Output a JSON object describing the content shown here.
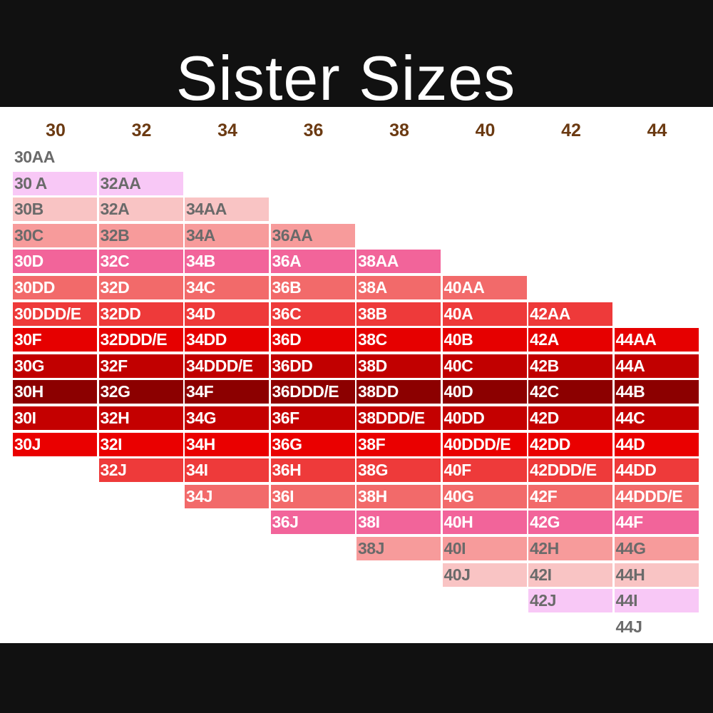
{
  "title": "Sister Sizes",
  "bands": [
    "30",
    "32",
    "34",
    "36",
    "38",
    "40",
    "42",
    "44"
  ],
  "cup_colors": {
    "AA": {
      "bg": "none",
      "fg": "light"
    },
    "A": {
      "bg": "#f8c8f6",
      "fg": "light"
    },
    "B": {
      "bg": "#f9c4c4",
      "fg": "light"
    },
    "C": {
      "bg": "#f79b9b",
      "fg": "light"
    },
    "D": {
      "bg": "#f2649a",
      "fg": "dark"
    },
    "DD": {
      "bg": "#f26a6a",
      "fg": "dark"
    },
    "DDD/E": {
      "bg": "#ee3a3a",
      "fg": "dark"
    },
    "F": {
      "bg": "#e60000",
      "fg": "dark"
    },
    "G": {
      "bg": "#c10000",
      "fg": "dark"
    },
    "H": {
      "bg": "#8c0000",
      "fg": "dark"
    },
    "I": {
      "bg": "#c40000",
      "fg": "dark"
    },
    "J": {
      "bg": "#ea0000",
      "fg": "dark"
    }
  },
  "columns": [
    {
      "band": "30",
      "start_row": 0,
      "cells": [
        {
          "label": "30AA",
          "tone": "AA"
        },
        {
          "label": "30 A",
          "tone": "A"
        },
        {
          "label": "30B",
          "tone": "B"
        },
        {
          "label": "30C",
          "tone": "C"
        },
        {
          "label": "30D",
          "tone": "D"
        },
        {
          "label": "30DD",
          "tone": "DD"
        },
        {
          "label": "30DDD/E",
          "tone": "DDD/E"
        },
        {
          "label": "30F",
          "tone": "F"
        },
        {
          "label": "30G",
          "tone": "G"
        },
        {
          "label": "30H",
          "tone": "H"
        },
        {
          "label": "30I",
          "tone": "I"
        },
        {
          "label": "30J",
          "tone": "J"
        }
      ]
    },
    {
      "band": "32",
      "start_row": 1,
      "cells": [
        {
          "label": "32AA",
          "tone": "AA"
        },
        {
          "label": "32A",
          "tone": "A"
        },
        {
          "label": "32B",
          "tone": "B"
        },
        {
          "label": "32C",
          "tone": "C"
        },
        {
          "label": "32D",
          "tone": "D"
        },
        {
          "label": "32DD",
          "tone": "DD"
        },
        {
          "label": "32DDD/E",
          "tone": "DDD/E"
        },
        {
          "label": "32F",
          "tone": "F"
        },
        {
          "label": "32G",
          "tone": "G"
        },
        {
          "label": "32H",
          "tone": "H"
        },
        {
          "label": "32I",
          "tone": "I"
        },
        {
          "label": "32J",
          "tone": "J"
        }
      ]
    },
    {
      "band": "34",
      "start_row": 2,
      "cells": [
        {
          "label": "34AA",
          "tone": "AA"
        },
        {
          "label": "34A",
          "tone": "A"
        },
        {
          "label": "34B",
          "tone": "B"
        },
        {
          "label": "34C",
          "tone": "C"
        },
        {
          "label": "34D",
          "tone": "D"
        },
        {
          "label": "34DD",
          "tone": "DD"
        },
        {
          "label": "34DDD/E",
          "tone": "DDD/E"
        },
        {
          "label": "34F",
          "tone": "F"
        },
        {
          "label": "34G",
          "tone": "G"
        },
        {
          "label": "34H",
          "tone": "H"
        },
        {
          "label": "34I",
          "tone": "I"
        },
        {
          "label": "34J",
          "tone": "J"
        }
      ]
    },
    {
      "band": "36",
      "start_row": 3,
      "cells": [
        {
          "label": "36AA",
          "tone": "AA"
        },
        {
          "label": "36A",
          "tone": "A"
        },
        {
          "label": "36B",
          "tone": "B"
        },
        {
          "label": "36C",
          "tone": "C"
        },
        {
          "label": "36D",
          "tone": "D"
        },
        {
          "label": "36DD",
          "tone": "DD"
        },
        {
          "label": "36DDD/E",
          "tone": "DDD/E"
        },
        {
          "label": "36F",
          "tone": "F"
        },
        {
          "label": "36G",
          "tone": "G"
        },
        {
          "label": "36H",
          "tone": "H"
        },
        {
          "label": "36I",
          "tone": "I"
        },
        {
          "label": "36J",
          "tone": "J"
        }
      ]
    },
    {
      "band": "38",
      "start_row": 4,
      "cells": [
        {
          "label": "38AA",
          "tone": "AA"
        },
        {
          "label": "38A",
          "tone": "A"
        },
        {
          "label": "38B",
          "tone": "B"
        },
        {
          "label": "38C",
          "tone": "C"
        },
        {
          "label": "38D",
          "tone": "D"
        },
        {
          "label": "38DD",
          "tone": "DD"
        },
        {
          "label": "38DDD/E",
          "tone": "DDD/E"
        },
        {
          "label": "38F",
          "tone": "F"
        },
        {
          "label": "38G",
          "tone": "G"
        },
        {
          "label": "38H",
          "tone": "H"
        },
        {
          "label": "38I",
          "tone": "I"
        },
        {
          "label": "38J",
          "tone": "J"
        }
      ]
    },
    {
      "band": "40",
      "start_row": 5,
      "cells": [
        {
          "label": "40AA",
          "tone": "AA"
        },
        {
          "label": "40A",
          "tone": "A"
        },
        {
          "label": "40B",
          "tone": "B"
        },
        {
          "label": "40C",
          "tone": "C"
        },
        {
          "label": "40D",
          "tone": "D"
        },
        {
          "label": "40DD",
          "tone": "DD"
        },
        {
          "label": "40DDD/E",
          "tone": "DDD/E"
        },
        {
          "label": "40F",
          "tone": "F"
        },
        {
          "label": "40G",
          "tone": "G"
        },
        {
          "label": "40H",
          "tone": "H"
        },
        {
          "label": "40I",
          "tone": "I"
        },
        {
          "label": "40J",
          "tone": "J"
        }
      ]
    },
    {
      "band": "42",
      "start_row": 6,
      "cells": [
        {
          "label": "42AA",
          "tone": "AA"
        },
        {
          "label": "42A",
          "tone": "A"
        },
        {
          "label": "42B",
          "tone": "B"
        },
        {
          "label": "42C",
          "tone": "C"
        },
        {
          "label": "42D",
          "tone": "D"
        },
        {
          "label": "42DD",
          "tone": "DD"
        },
        {
          "label": "42DDD/E",
          "tone": "DDD/E"
        },
        {
          "label": "42F",
          "tone": "F"
        },
        {
          "label": "42G",
          "tone": "G"
        },
        {
          "label": "42H",
          "tone": "H"
        },
        {
          "label": "42I",
          "tone": "I"
        },
        {
          "label": "42J",
          "tone": "J"
        }
      ]
    },
    {
      "band": "44",
      "start_row": 7,
      "cells": [
        {
          "label": "44AA",
          "tone": "AA"
        },
        {
          "label": "44A",
          "tone": "A"
        },
        {
          "label": "44B",
          "tone": "B"
        },
        {
          "label": "44C",
          "tone": "C"
        },
        {
          "label": "44D",
          "tone": "D"
        },
        {
          "label": "44DD",
          "tone": "DD"
        },
        {
          "label": "44DDD/E",
          "tone": "DDD/E"
        },
        {
          "label": "44F",
          "tone": "F"
        },
        {
          "label": "44G",
          "tone": "G"
        },
        {
          "label": "44H",
          "tone": "H"
        },
        {
          "label": "44I",
          "tone": "I"
        },
        {
          "label": "44J",
          "tone": "J"
        }
      ]
    }
  ],
  "row_tones": [
    "AA",
    "A",
    "B",
    "C",
    "D",
    "DD",
    "DDD/E",
    "F",
    "G",
    "H",
    "I",
    "J",
    "J2",
    "I2",
    "B2",
    "A2",
    "AA2",
    "x",
    "y",
    "z"
  ]
}
